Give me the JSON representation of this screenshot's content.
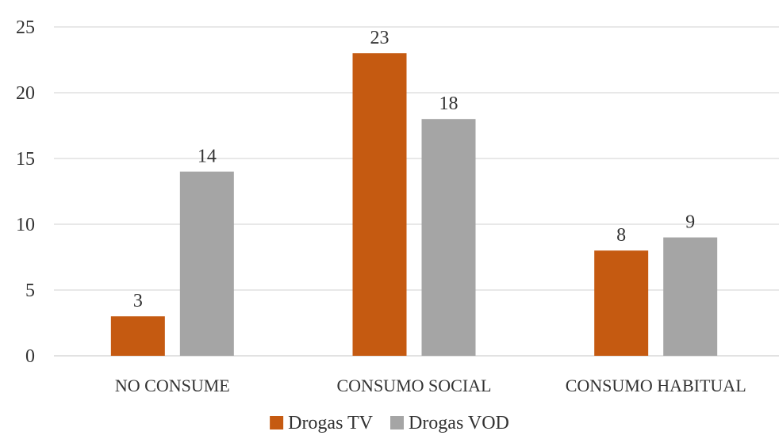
{
  "chart_data": {
    "type": "bar",
    "categories": [
      "NO CONSUME",
      "CONSUMO SOCIAL",
      "CONSUMO HABITUAL"
    ],
    "series": [
      {
        "name": "Drogas TV",
        "values": [
          3,
          23,
          8
        ],
        "color": "#c55a11"
      },
      {
        "name": "Drogas VOD",
        "values": [
          14,
          18,
          9
        ],
        "color": "#a5a5a5"
      }
    ],
    "yticks": [
      "0",
      "5",
      "10",
      "15",
      "20",
      "25"
    ],
    "ylim": [
      0,
      25
    ],
    "grid": true,
    "legend_position": "bottom",
    "data_labels": true,
    "title": "",
    "xlabel": "",
    "ylabel": ""
  }
}
